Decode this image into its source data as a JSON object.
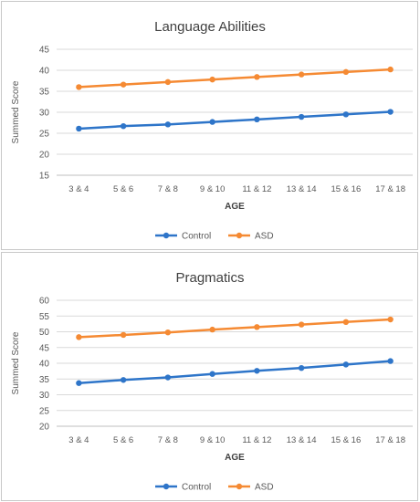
{
  "chart_data": [
    {
      "type": "line",
      "title": "Language Abilities",
      "xlabel": "AGE",
      "ylabel": "Summed Score",
      "categories": [
        "3 & 4",
        "5 & 6",
        "7 & 8",
        "9 & 10",
        "11 & 12",
        "13 & 14",
        "15 & 16",
        "17 & 18"
      ],
      "ylim": [
        15,
        45
      ],
      "yticks": [
        15,
        20,
        25,
        30,
        35,
        40,
        45
      ],
      "grid": true,
      "legend_position": "bottom",
      "series": [
        {
          "name": "Control",
          "color": "#2e75c9",
          "values": [
            26.1,
            26.7,
            27.1,
            27.7,
            28.3,
            28.9,
            29.5,
            30.1
          ]
        },
        {
          "name": "ASD",
          "color": "#f58a33",
          "values": [
            36.0,
            36.6,
            37.2,
            37.8,
            38.4,
            39.0,
            39.6,
            40.2
          ]
        }
      ]
    },
    {
      "type": "line",
      "title": "Pragmatics",
      "xlabel": "AGE",
      "ylabel": "Summed Score",
      "categories": [
        "3 & 4",
        "5 & 6",
        "7 & 8",
        "9 & 10",
        "11 & 12",
        "13 & 14",
        "15 & 16",
        "17 & 18"
      ],
      "ylim": [
        20,
        60
      ],
      "yticks": [
        20,
        25,
        30,
        35,
        40,
        45,
        50,
        55,
        60
      ],
      "grid": true,
      "legend_position": "bottom",
      "series": [
        {
          "name": "Control",
          "color": "#2e75c9",
          "values": [
            33.7,
            34.7,
            35.5,
            36.6,
            37.6,
            38.5,
            39.6,
            40.7
          ]
        },
        {
          "name": "ASD",
          "color": "#f58a33",
          "values": [
            48.3,
            49.0,
            49.8,
            50.7,
            51.5,
            52.3,
            53.1,
            53.9
          ]
        }
      ]
    }
  ]
}
